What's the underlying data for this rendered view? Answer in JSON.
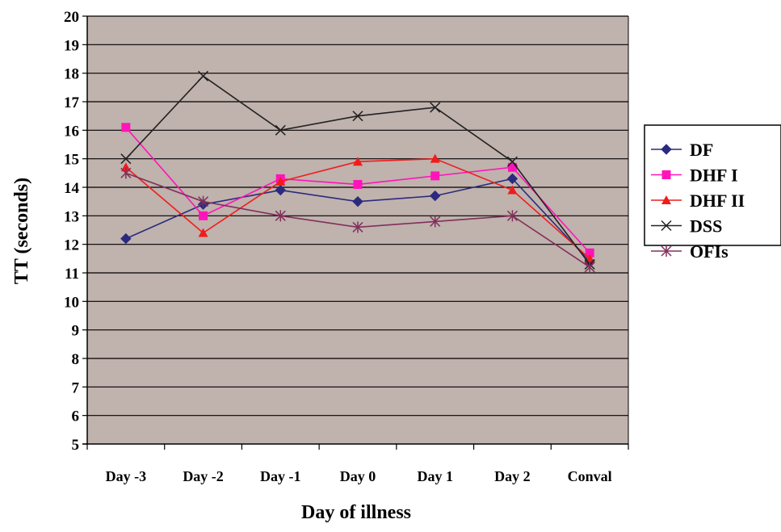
{
  "chart_data": {
    "type": "line",
    "title": "",
    "xlabel": "Day of illness",
    "ylabel": "TT (seconds)",
    "categories": [
      "Day -3",
      "Day -2",
      "Day -1",
      "Day 0",
      "Day 1",
      "Day 2",
      "Conval"
    ],
    "ylim": [
      5,
      20
    ],
    "yticks": [
      5,
      6,
      7,
      8,
      9,
      10,
      11,
      12,
      13,
      14,
      15,
      16,
      17,
      18,
      19,
      20
    ],
    "grid": true,
    "plot_background": "#c0b2ad",
    "legend_position": "right",
    "series": [
      {
        "name": "DF",
        "color": "#2a2a7e",
        "marker": "diamond",
        "values": [
          12.2,
          13.4,
          13.9,
          13.5,
          13.7,
          14.3,
          11.4
        ]
      },
      {
        "name": "DHF I",
        "color": "#ff14ba",
        "marker": "square",
        "values": [
          16.1,
          13.0,
          14.3,
          14.1,
          14.4,
          14.7,
          11.7
        ]
      },
      {
        "name": "DHF II",
        "color": "#f01c1c",
        "marker": "triangle",
        "values": [
          14.7,
          12.4,
          14.2,
          14.9,
          15.0,
          13.9,
          11.5
        ]
      },
      {
        "name": "DSS",
        "color": "#222222",
        "marker": "x",
        "values": [
          15.0,
          17.9,
          16.0,
          16.5,
          16.8,
          14.9,
          11.3
        ]
      },
      {
        "name": "OFIs",
        "color": "#80305a",
        "marker": "star",
        "values": [
          14.5,
          13.5,
          13.0,
          12.6,
          12.8,
          13.0,
          11.2
        ]
      }
    ]
  }
}
